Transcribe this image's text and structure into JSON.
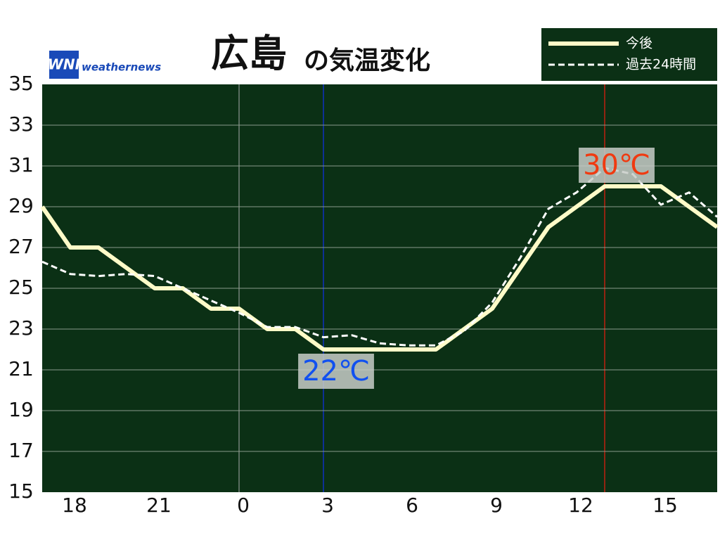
{
  "chart_data": {
    "type": "line",
    "title": "広島",
    "subtitle": "の気温変化",
    "logo": {
      "mark": "WNI",
      "text": "weathernews"
    },
    "categories": [
      null,
      "18",
      null,
      null,
      "21",
      null,
      null,
      "0",
      null,
      null,
      "3",
      null,
      null,
      "6",
      null,
      null,
      "9",
      null,
      null,
      "12",
      null,
      null,
      "15",
      null,
      null
    ],
    "series": [
      {
        "name": "今後",
        "color": "#fffbc8",
        "values": [
          29,
          27,
          27,
          26,
          25,
          25,
          24,
          24,
          23,
          23,
          22,
          22,
          22,
          22,
          22,
          23,
          24,
          26,
          28,
          29,
          30,
          30,
          30,
          29,
          28
        ]
      },
      {
        "name": "過去24時間",
        "color": "#ffffff",
        "values": [
          26.3,
          25.7,
          25.6,
          25.7,
          25.6,
          25.0,
          24.4,
          23.8,
          23.1,
          23.1,
          22.6,
          22.7,
          22.3,
          22.2,
          22.2,
          22.9,
          24.3,
          26.5,
          28.9,
          29.7,
          30.9,
          30.6,
          29.1,
          29.7,
          28.5
        ]
      }
    ],
    "annotations": [
      "22℃",
      "30℃"
    ],
    "ylim": [
      15,
      35
    ],
    "yticks": [
      15,
      17,
      19,
      21,
      23,
      25,
      27,
      29,
      31,
      33,
      35
    ],
    "grid": true
  }
}
